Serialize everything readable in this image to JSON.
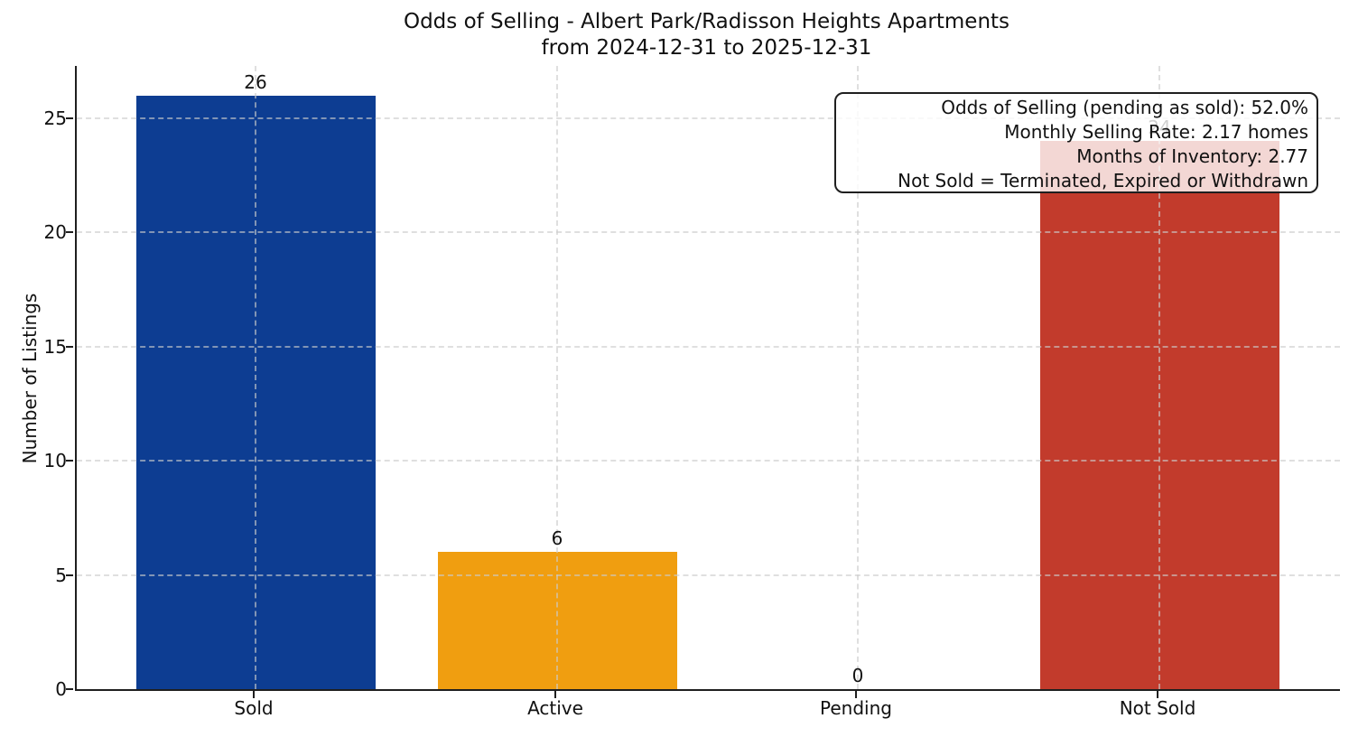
{
  "chart_data": {
    "type": "bar",
    "title": "Odds of Selling - Albert Park/Radisson Heights Apartments",
    "subtitle": "from 2024-12-31 to 2025-12-31",
    "ylabel": "Number of Listings",
    "xlabel": "",
    "categories": [
      "Sold",
      "Active",
      "Pending",
      "Not Sold"
    ],
    "values": [
      26,
      6,
      0,
      24
    ],
    "value_labels": [
      "26",
      "6",
      "0",
      "24"
    ],
    "bar_colors": [
      "#0d3d92",
      "#f09e10",
      "#c23b2c",
      "#c23b2c"
    ],
    "yticks": [
      0,
      5,
      10,
      15,
      20,
      25
    ],
    "ylim": [
      0,
      27.3
    ],
    "grid": "dashed-both-axes",
    "background_color": "#ffffff",
    "annotation": {
      "lines": [
        "Odds of Selling (pending as sold): 52.0%",
        "Monthly Selling Rate: 2.17 homes",
        "Months of Inventory: 2.77",
        "Not Sold = Terminated, Expired or Withdrawn"
      ],
      "position": "top-right"
    }
  }
}
